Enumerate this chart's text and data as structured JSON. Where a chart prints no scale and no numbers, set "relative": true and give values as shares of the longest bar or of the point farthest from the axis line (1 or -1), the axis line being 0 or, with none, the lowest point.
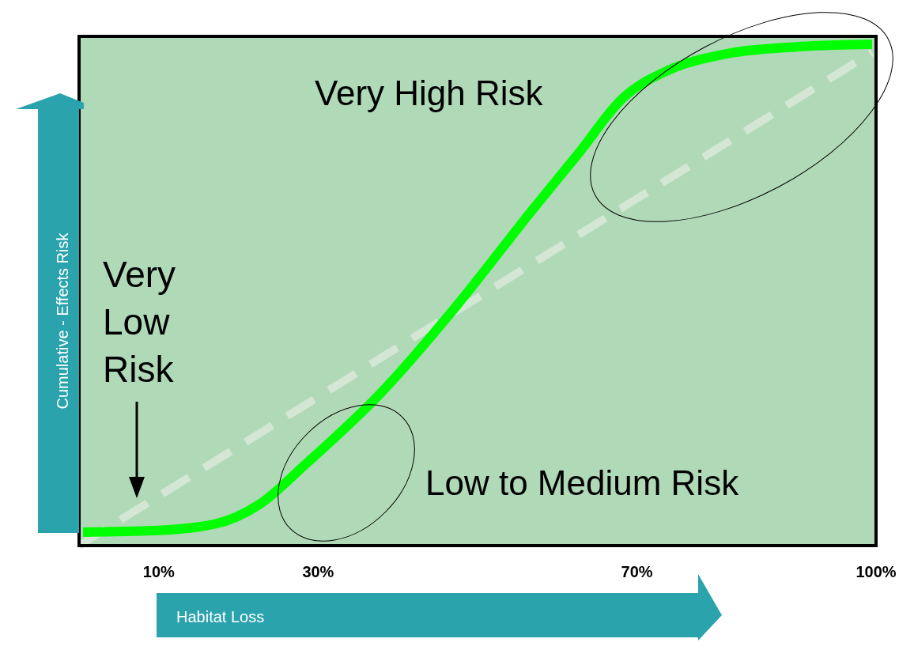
{
  "chart_data": {
    "type": "line",
    "relative": true,
    "xlabel": "Habitat Loss",
    "ylabel": "Cumulative - Effects Risk",
    "xlim": [
      0,
      100
    ],
    "xticks": [
      {
        "value": 10,
        "label": "10%"
      },
      {
        "value": 30,
        "label": "30%"
      },
      {
        "value": 70,
        "label": "70%"
      },
      {
        "value": 100,
        "label": "100%"
      }
    ],
    "tick_labels": "x",
    "grid": false,
    "annotations": [
      "Very High Risk",
      "Low to Medium Risk",
      "Very Low Risk"
    ],
    "series": [
      {
        "color": "#00ff00",
        "line_style": "solid",
        "x": [
          0.5,
          9.5,
          17,
          22.7,
          28.4,
          37.9,
          47.4,
          56.9,
          62.6,
          68.2,
          73.9,
          80.6,
          90,
          99.5
        ],
        "values": [
          0.027,
          0.03,
          0.043,
          0.083,
          0.162,
          0.305,
          0.479,
          0.67,
          0.781,
          0.892,
          0.948,
          0.979,
          0.995,
          1
        ]
      },
      {
        "color": "#d4e6d4",
        "line_style": "dashed",
        "x": [
          0,
          99.5
        ],
        "values": [
          0,
          0.984
        ]
      }
    ]
  }
}
